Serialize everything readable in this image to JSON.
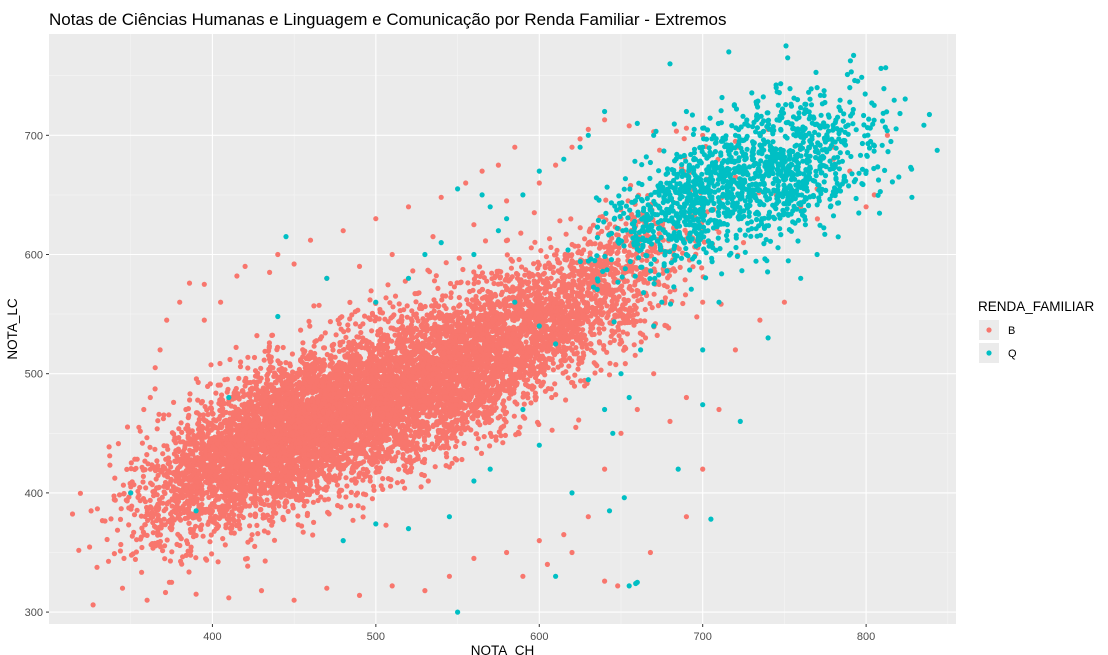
{
  "chart_data": {
    "type": "scatter",
    "title": "Notas de Ciências Humanas e Linguagem e Comunicação por Renda Familiar - Extremos",
    "xlabel": "NOTA_CH",
    "ylabel": "NOTA_LC",
    "xlim": [
      300,
      855
    ],
    "ylim": [
      290,
      785
    ],
    "x_ticks": [
      400,
      500,
      600,
      700,
      800
    ],
    "y_ticks": [
      300,
      400,
      500,
      600,
      700
    ],
    "x_tick_labels": [
      "400",
      "500",
      "600",
      "700",
      "800"
    ],
    "y_tick_labels": [
      "300",
      "400",
      "500",
      "600",
      "700"
    ],
    "grid": true,
    "legend": {
      "title": "RENDA_FAMILIAR",
      "placement": "right",
      "entries": [
        {
          "label": "B",
          "color": "#F8766D"
        },
        {
          "label": "Q",
          "color": "#00BFC4"
        }
      ]
    },
    "series": [
      {
        "name": "B",
        "color": "#F8766D",
        "points": [
          [
            327,
            306
          ],
          [
            345,
            320
          ],
          [
            360,
            310
          ],
          [
            375,
            325
          ],
          [
            390,
            315
          ],
          [
            410,
            312
          ],
          [
            430,
            318
          ],
          [
            450,
            310
          ],
          [
            470,
            320
          ],
          [
            490,
            314
          ],
          [
            510,
            322
          ],
          [
            530,
            318
          ],
          [
            545,
            330
          ],
          [
            560,
            345
          ],
          [
            580,
            350
          ],
          [
            600,
            360
          ],
          [
            615,
            365
          ],
          [
            640,
            326
          ],
          [
            648,
            322
          ],
          [
            668,
            350
          ],
          [
            350,
            400
          ],
          [
            355,
            455
          ],
          [
            362,
            480
          ],
          [
            368,
            520
          ],
          [
            372,
            545
          ],
          [
            380,
            560
          ],
          [
            386,
            576
          ],
          [
            395,
            575
          ],
          [
            415,
            582
          ],
          [
            435,
            585
          ],
          [
            450,
            592
          ],
          [
            470,
            580
          ],
          [
            490,
            590
          ],
          [
            510,
            600
          ],
          [
            535,
            615
          ],
          [
            560,
            625
          ],
          [
            580,
            645
          ],
          [
            600,
            660
          ],
          [
            610,
            675
          ],
          [
            620,
            690
          ],
          [
            625,
            697
          ],
          [
            630,
            705
          ],
          [
            640,
            713
          ],
          [
            655,
            708
          ],
          [
            670,
            703
          ],
          [
            690,
            706
          ],
          [
            700,
            700
          ],
          [
            720,
            695
          ],
          [
            740,
            705
          ],
          [
            760,
            690
          ],
          [
            780,
            680
          ],
          [
            800,
            640
          ],
          [
            813,
            700
          ],
          [
            700,
            420
          ],
          [
            690,
            380
          ],
          [
            680,
            460
          ],
          [
            670,
            500
          ],
          [
            665,
            530
          ],
          [
            720,
            520
          ],
          [
            750,
            560
          ],
          [
            735,
            545
          ],
          [
            710,
            470
          ],
          [
            690,
            480
          ],
          [
            678,
            540
          ],
          [
            655,
            600
          ],
          [
            640,
            560
          ],
          [
            650,
            630
          ],
          [
            690,
            600
          ],
          [
            700,
            560
          ],
          [
            725,
            610
          ],
          [
            745,
            650
          ],
          [
            770,
            655
          ],
          [
            790,
            670
          ],
          [
            590,
            330
          ],
          [
            605,
            340
          ],
          [
            620,
            350
          ],
          [
            630,
            380
          ],
          [
            640,
            420
          ],
          [
            650,
            450
          ],
          [
            660,
            470
          ],
          [
            700,
            640
          ],
          [
            720,
            665
          ],
          [
            760,
            640
          ],
          [
            780,
            690
          ],
          [
            805,
            650
          ],
          [
            585,
            690
          ],
          [
            575,
            675
          ],
          [
            565,
            670
          ],
          [
            555,
            660
          ],
          [
            540,
            648
          ],
          [
            520,
            640
          ],
          [
            500,
            630
          ],
          [
            480,
            620
          ],
          [
            460,
            612
          ],
          [
            440,
            600
          ],
          [
            420,
            590
          ],
          [
            405,
            560
          ],
          [
            395,
            545
          ],
          [
            365,
            505
          ],
          [
            358,
            470
          ]
        ],
        "clusters": [
          {
            "x": 440,
            "y": 445,
            "count": 2600,
            "sx": 38,
            "sy": 36
          },
          {
            "x": 490,
            "y": 472,
            "count": 2400,
            "sx": 42,
            "sy": 38
          },
          {
            "x": 540,
            "y": 500,
            "count": 1800,
            "sx": 38,
            "sy": 36
          },
          {
            "x": 590,
            "y": 535,
            "count": 1100,
            "sx": 32,
            "sy": 34
          },
          {
            "x": 630,
            "y": 565,
            "count": 500,
            "sx": 28,
            "sy": 32
          },
          {
            "x": 665,
            "y": 600,
            "count": 160,
            "sx": 28,
            "sy": 38
          },
          {
            "x": 400,
            "y": 420,
            "count": 700,
            "sx": 26,
            "sy": 34
          }
        ]
      },
      {
        "name": "Q",
        "color": "#00BFC4",
        "points": [
          [
            659,
            324
          ],
          [
            655,
            322
          ],
          [
            660,
            325
          ],
          [
            700,
            474
          ],
          [
            685,
            420
          ],
          [
            705,
            378
          ],
          [
            723,
            460
          ],
          [
            652,
            396
          ],
          [
            643,
            385
          ],
          [
            620,
            400
          ],
          [
            600,
            440
          ],
          [
            590,
            470
          ],
          [
            570,
            420
          ],
          [
            560,
            410
          ],
          [
            545,
            380
          ],
          [
            520,
            370
          ],
          [
            500,
            374
          ],
          [
            480,
            360
          ],
          [
            550,
            300
          ],
          [
            610,
            330
          ],
          [
            640,
            470
          ],
          [
            645,
            450
          ],
          [
            630,
            495
          ],
          [
            655,
            480
          ],
          [
            662,
            520
          ],
          [
            670,
            540
          ],
          [
            675,
            560
          ],
          [
            690,
            600
          ],
          [
            700,
            520
          ],
          [
            710,
            560
          ],
          [
            740,
            530
          ],
          [
            760,
            580
          ],
          [
            770,
            600
          ],
          [
            680,
            760
          ],
          [
            716,
            770
          ],
          [
            751,
            775
          ],
          [
            752,
            765
          ],
          [
            793,
            746
          ],
          [
            828,
            648
          ],
          [
            820,
            665
          ],
          [
            800,
            670
          ],
          [
            810,
            712
          ],
          [
            790,
            740
          ],
          [
            770,
            740
          ],
          [
            758,
            730
          ],
          [
            745,
            740
          ],
          [
            733,
            726
          ],
          [
            700,
            706
          ],
          [
            700,
            690
          ],
          [
            690,
            720
          ],
          [
            670,
            700
          ],
          [
            660,
            710
          ],
          [
            640,
            720
          ],
          [
            630,
            700
          ],
          [
            625,
            690
          ],
          [
            615,
            680
          ],
          [
            600,
            670
          ],
          [
            590,
            650
          ],
          [
            580,
            630
          ],
          [
            570,
            640
          ],
          [
            565,
            650
          ],
          [
            550,
            655
          ],
          [
            540,
            610
          ],
          [
            530,
            600
          ],
          [
            445,
            615
          ],
          [
            470,
            580
          ],
          [
            440,
            548
          ],
          [
            390,
            385
          ],
          [
            350,
            400
          ],
          [
            410,
            480
          ],
          [
            500,
            560
          ],
          [
            520,
            580
          ],
          [
            560,
            600
          ],
          [
            575,
            620
          ],
          [
            585,
            560
          ],
          [
            600,
            540
          ],
          [
            610,
            525
          ],
          [
            650,
            500
          ],
          [
            668,
            640
          ],
          [
            680,
            650
          ]
        ],
        "clusters": [
          {
            "x": 715,
            "y": 652,
            "count": 650,
            "sx": 32,
            "sy": 30
          },
          {
            "x": 765,
            "y": 668,
            "count": 350,
            "sx": 26,
            "sy": 30
          },
          {
            "x": 680,
            "y": 632,
            "count": 260,
            "sx": 22,
            "sy": 28
          },
          {
            "x": 740,
            "y": 700,
            "count": 200,
            "sx": 30,
            "sy": 22
          }
        ]
      }
    ]
  }
}
